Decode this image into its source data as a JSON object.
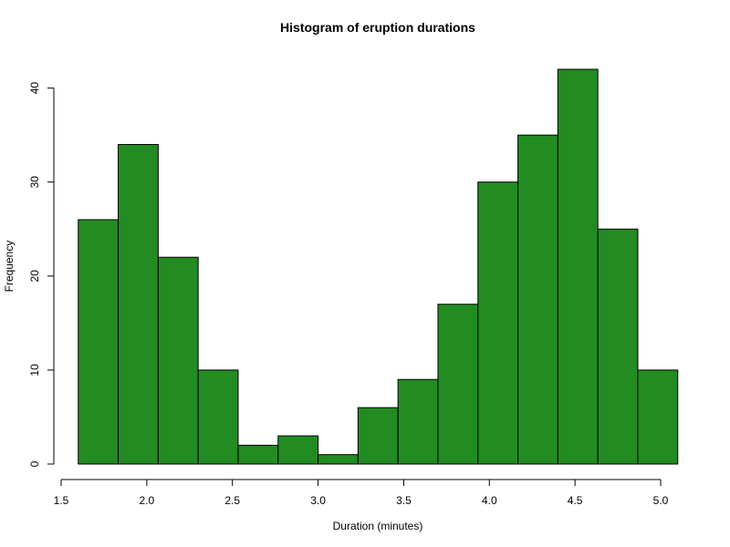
{
  "chart_data": {
    "type": "bar",
    "title": "Histogram of eruption durations",
    "xlabel": "Duration (minutes)",
    "ylabel": "Frequency",
    "bar_color": "#228B22",
    "x_ticks": [
      "1.5",
      "2.0",
      "2.5",
      "3.0",
      "3.5",
      "4.0",
      "4.5",
      "5.0"
    ],
    "y_ticks": [
      "0",
      "10",
      "20",
      "30",
      "40"
    ],
    "xlim": [
      1.5,
      5.0
    ],
    "ylim": [
      0,
      42
    ],
    "bins": [
      {
        "x0": 1.6,
        "x1": 1.8333,
        "count": 26
      },
      {
        "x0": 1.8333,
        "x1": 2.0667,
        "count": 34
      },
      {
        "x0": 2.0667,
        "x1": 2.3,
        "count": 22
      },
      {
        "x0": 2.3,
        "x1": 2.5333,
        "count": 10
      },
      {
        "x0": 2.5333,
        "x1": 2.7667,
        "count": 2
      },
      {
        "x0": 2.7667,
        "x1": 3.0,
        "count": 3
      },
      {
        "x0": 3.0,
        "x1": 3.2333,
        "count": 1
      },
      {
        "x0": 3.2333,
        "x1": 3.4667,
        "count": 6
      },
      {
        "x0": 3.4667,
        "x1": 3.7,
        "count": 9
      },
      {
        "x0": 3.7,
        "x1": 3.9333,
        "count": 17
      },
      {
        "x0": 3.9333,
        "x1": 4.1667,
        "count": 30
      },
      {
        "x0": 4.1667,
        "x1": 4.4,
        "count": 35
      },
      {
        "x0": 4.4,
        "x1": 4.6333,
        "count": 42
      },
      {
        "x0": 4.6333,
        "x1": 4.8667,
        "count": 25
      },
      {
        "x0": 4.8667,
        "x1": 5.1,
        "count": 10
      }
    ]
  }
}
